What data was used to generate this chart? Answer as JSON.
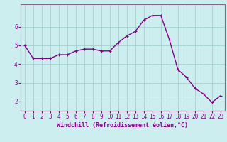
{
  "x": [
    0,
    1,
    2,
    3,
    4,
    5,
    6,
    7,
    8,
    9,
    10,
    11,
    12,
    13,
    14,
    15,
    16,
    17,
    18,
    19,
    20,
    21,
    22,
    23
  ],
  "y": [
    5.0,
    4.3,
    4.3,
    4.3,
    4.5,
    4.5,
    4.7,
    4.8,
    4.8,
    4.7,
    4.7,
    5.15,
    5.5,
    5.75,
    6.35,
    6.6,
    6.6,
    5.3,
    3.7,
    3.3,
    2.7,
    2.4,
    1.95,
    2.3
  ],
  "line_color": "#880088",
  "marker": "+",
  "marker_size": 3,
  "marker_linewidth": 0.8,
  "background_color": "#cceeee",
  "grid_color": "#99cccc",
  "xlabel": "Windchill (Refroidissement éolien,°C)",
  "xlim": [
    -0.5,
    23.5
  ],
  "ylim": [
    1.5,
    7.2
  ],
  "yticks": [
    2,
    3,
    4,
    5,
    6
  ],
  "xticks": [
    0,
    1,
    2,
    3,
    4,
    5,
    6,
    7,
    8,
    9,
    10,
    11,
    12,
    13,
    14,
    15,
    16,
    17,
    18,
    19,
    20,
    21,
    22,
    23
  ],
  "spine_color": "#886688",
  "tick_color": "#880088",
  "label_color": "#880088",
  "tick_fontsize": 5.5,
  "xlabel_fontsize": 6.0,
  "linewidth": 1.0
}
